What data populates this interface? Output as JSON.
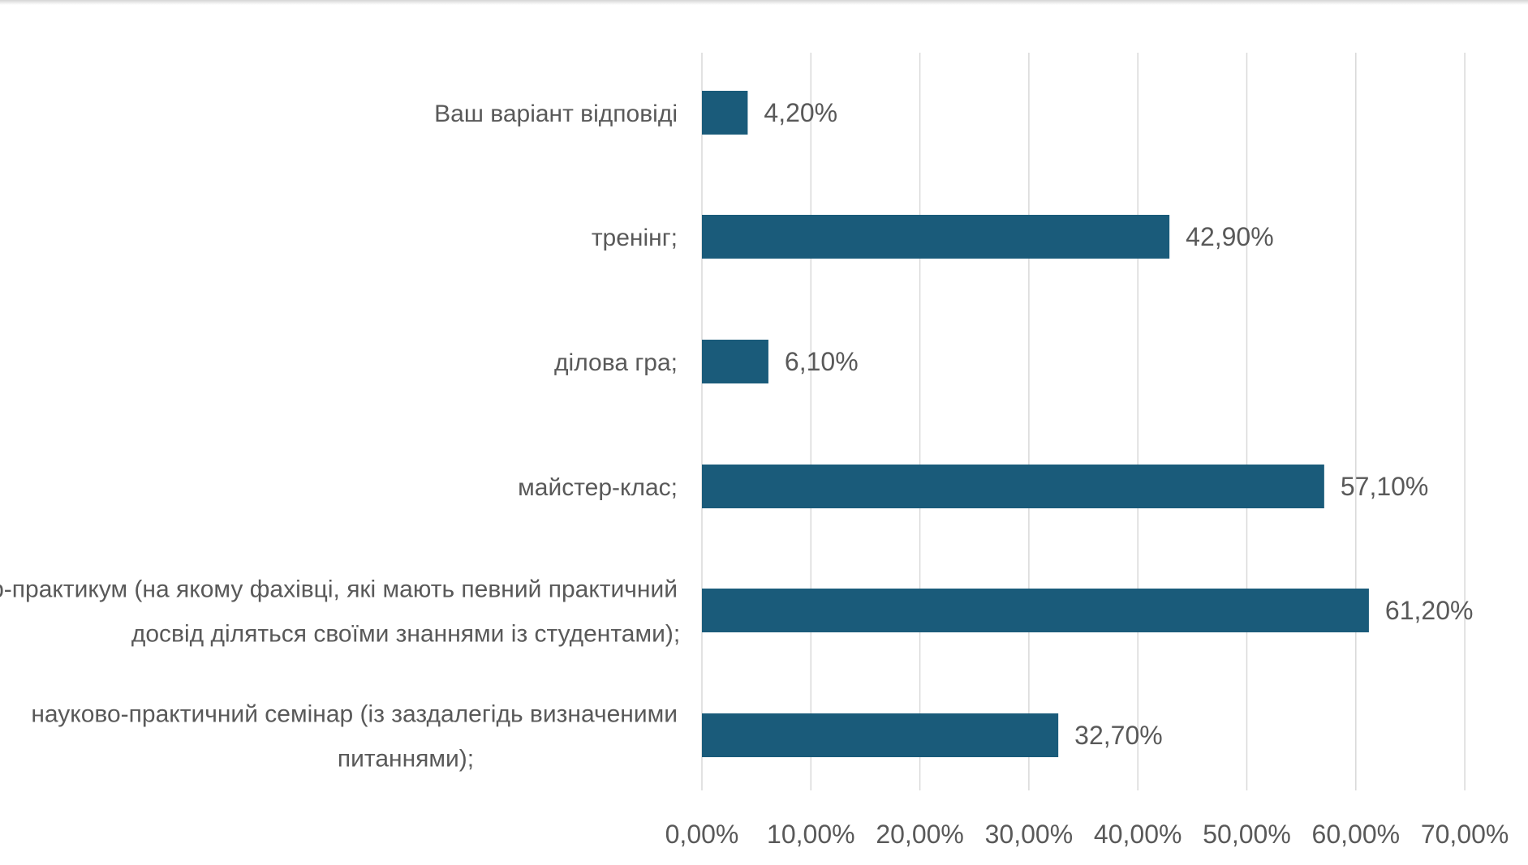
{
  "chart_data": {
    "type": "bar",
    "orientation": "horizontal",
    "categories": [
      "Ваш варіант відповіді",
      "тренінг;",
      "ділова гра;",
      "майстер-клас;",
      "семінар-практикум (на якому фахівці, які мають певний практичний досвід діляться своїми знаннями із студентами);",
      "науково-практичний семінар (із заздалегідь визначеними питаннями);"
    ],
    "category_lines": [
      [
        "Ваш варіант відповіді"
      ],
      [
        "тренінг;"
      ],
      [
        "ділова гра;"
      ],
      [
        "майстер-клас;"
      ],
      [
        "семінар-практикум (на якому фахівці, які мають певний практичний",
        "досвід діляться своїми знаннями із студентами);"
      ],
      [
        "науково-практичний семінар (із заздалегідь визначеними",
        "питаннями);"
      ]
    ],
    "values": [
      4.2,
      42.9,
      6.1,
      57.1,
      61.2,
      32.7
    ],
    "value_labels": [
      "4,20%",
      "42,90%",
      "6,10%",
      "57,10%",
      "61,20%",
      "32,70%"
    ],
    "xlim": [
      0,
      70
    ],
    "x_ticks": [
      0,
      10,
      20,
      30,
      40,
      50,
      60,
      70
    ],
    "x_tick_labels": [
      "0,00%",
      "10,00%",
      "20,00%",
      "30,00%",
      "40,00%",
      "50,00%",
      "60,00%",
      "70,00%"
    ],
    "title": "",
    "xlabel": "",
    "ylabel": "",
    "grid": "vertical",
    "legend": "none",
    "bar_color": "#1a5b7a",
    "grid_color": "#d9d9d9",
    "text_color": "#595959"
  }
}
